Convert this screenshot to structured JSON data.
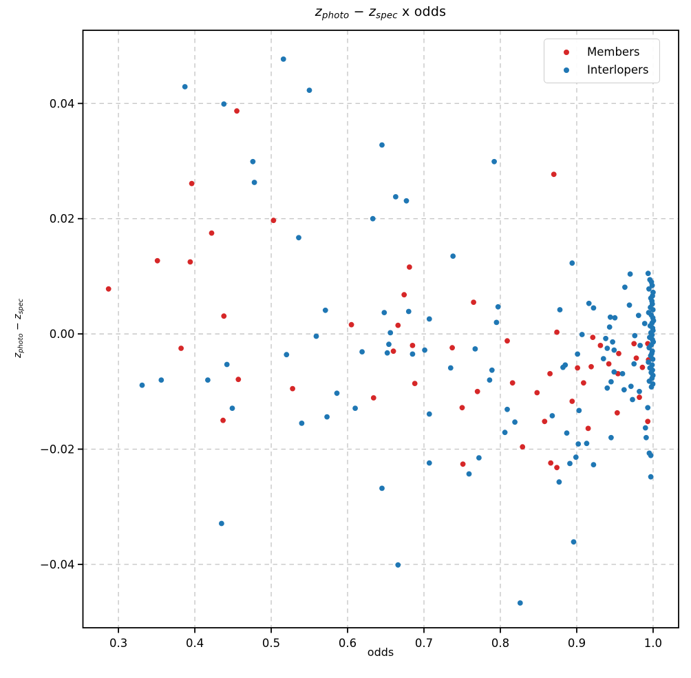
{
  "chart_data": {
    "type": "scatter",
    "title_segments": [
      {
        "k": "var",
        "t": "z"
      },
      {
        "k": "sub",
        "t": "photo"
      },
      {
        "k": "norm",
        "t": " − "
      },
      {
        "k": "var",
        "t": "z"
      },
      {
        "k": "sub",
        "t": "spec"
      },
      {
        "k": "norm",
        "t": " x odds"
      }
    ],
    "xlabel": "odds",
    "ylabel_segments": [
      {
        "k": "var",
        "t": "z"
      },
      {
        "k": "sub",
        "t": "photo"
      },
      {
        "k": "norm",
        "t": " − "
      },
      {
        "k": "var",
        "t": "z"
      },
      {
        "k": "sub",
        "t": "spec"
      }
    ],
    "xlim": [
      0.2535,
      1.0334
    ],
    "ylim": [
      -0.051,
      0.0527
    ],
    "grid": "dashed",
    "xticks": {
      "values": [
        0.3,
        0.4,
        0.5,
        0.6,
        0.7,
        0.8,
        0.9,
        1.0
      ],
      "labels": [
        "0.3",
        "0.4",
        "0.5",
        "0.6",
        "0.7",
        "0.8",
        "0.9",
        "1.0"
      ]
    },
    "yticks": {
      "values": [
        0.04,
        0.02,
        0.0,
        -0.02,
        -0.04
      ],
      "labels": [
        "0.04",
        "0.02",
        "0.00",
        "−0.02",
        "−0.04"
      ]
    },
    "legend": [
      {
        "label": "Members",
        "color": "#d62728"
      },
      {
        "label": "Interlopers",
        "color": "#1f77b4"
      }
    ],
    "series": [
      {
        "name": "Members",
        "color": "#d62728",
        "points": [
          [
            0.287,
            0.0078
          ],
          [
            0.351,
            0.0127
          ],
          [
            0.394,
            0.0125
          ],
          [
            0.422,
            0.0175
          ],
          [
            0.396,
            0.0261
          ],
          [
            0.455,
            0.0387
          ],
          [
            0.503,
            0.0197
          ],
          [
            0.438,
            0.0031
          ],
          [
            0.382,
            -0.0025
          ],
          [
            0.457,
            -0.0079
          ],
          [
            0.437,
            -0.015
          ],
          [
            0.528,
            -0.0095
          ],
          [
            0.605,
            0.0016
          ],
          [
            0.666,
            0.0015
          ],
          [
            0.674,
            0.0068
          ],
          [
            0.681,
            0.0116
          ],
          [
            0.685,
            -0.002
          ],
          [
            0.66,
            -0.003
          ],
          [
            0.688,
            -0.0086
          ],
          [
            0.634,
            -0.0111
          ],
          [
            0.765,
            0.0055
          ],
          [
            0.737,
            -0.0024
          ],
          [
            0.77,
            -0.01
          ],
          [
            0.75,
            -0.0128
          ],
          [
            0.87,
            0.0277
          ],
          [
            0.874,
            0.0003
          ],
          [
            0.809,
            -0.0012
          ],
          [
            0.921,
            -0.0006
          ],
          [
            0.931,
            -0.002
          ],
          [
            0.955,
            -0.0034
          ],
          [
            0.901,
            -0.0059
          ],
          [
            0.919,
            -0.0057
          ],
          [
            0.942,
            -0.0052
          ],
          [
            0.954,
            -0.0069
          ],
          [
            0.865,
            -0.0069
          ],
          [
            0.816,
            -0.0085
          ],
          [
            0.848,
            -0.0102
          ],
          [
            0.909,
            -0.0085
          ],
          [
            0.894,
            -0.0117
          ],
          [
            0.982,
            -0.011
          ],
          [
            0.953,
            -0.0137
          ],
          [
            0.858,
            -0.0152
          ],
          [
            0.915,
            -0.0164
          ],
          [
            0.993,
            -0.0152
          ],
          [
            0.829,
            -0.0196
          ],
          [
            0.866,
            -0.0224
          ],
          [
            0.874,
            -0.0232
          ],
          [
            0.751,
            -0.0226
          ],
          [
            0.975,
            -0.0017
          ],
          [
            0.993,
            -0.0017
          ],
          [
            0.978,
            -0.0042
          ],
          [
            0.994,
            -0.0045
          ],
          [
            0.986,
            -0.0058
          ]
        ]
      },
      {
        "name": "Interlopers",
        "color": "#1f77b4",
        "points": [
          [
            0.387,
            0.0429
          ],
          [
            0.438,
            0.0399
          ],
          [
            0.476,
            0.0299
          ],
          [
            0.478,
            0.0263
          ],
          [
            0.516,
            0.0477
          ],
          [
            0.55,
            0.0423
          ],
          [
            0.645,
            0.0328
          ],
          [
            0.663,
            0.0238
          ],
          [
            0.677,
            0.0231
          ],
          [
            0.633,
            0.02
          ],
          [
            0.792,
            0.0299
          ],
          [
            0.536,
            0.0167
          ],
          [
            0.738,
            0.0135
          ],
          [
            0.894,
            0.0123
          ],
          [
            0.571,
            0.0041
          ],
          [
            0.648,
            0.0037
          ],
          [
            0.68,
            0.0039
          ],
          [
            0.707,
            0.0026
          ],
          [
            0.656,
            0.0002
          ],
          [
            0.559,
            -0.0004
          ],
          [
            0.654,
            -0.0018
          ],
          [
            0.701,
            -0.0028
          ],
          [
            0.767,
            -0.0026
          ],
          [
            0.619,
            -0.0031
          ],
          [
            0.652,
            -0.0033
          ],
          [
            0.685,
            -0.0035
          ],
          [
            0.52,
            -0.0036
          ],
          [
            0.442,
            -0.0053
          ],
          [
            0.356,
            -0.008
          ],
          [
            0.331,
            -0.0089
          ],
          [
            0.417,
            -0.008
          ],
          [
            0.449,
            -0.0129
          ],
          [
            0.586,
            -0.0103
          ],
          [
            0.61,
            -0.0129
          ],
          [
            0.707,
            -0.0139
          ],
          [
            0.573,
            -0.0144
          ],
          [
            0.54,
            -0.0155
          ],
          [
            0.735,
            -0.0059
          ],
          [
            0.797,
            0.0047
          ],
          [
            0.795,
            0.002
          ],
          [
            0.878,
            0.0042
          ],
          [
            0.916,
            0.0053
          ],
          [
            0.922,
            0.0045
          ],
          [
            0.944,
            0.0029
          ],
          [
            0.95,
            0.0028
          ],
          [
            0.943,
            0.0012
          ],
          [
            0.907,
            -0.0001
          ],
          [
            0.938,
            -0.0008
          ],
          [
            0.947,
            -0.0014
          ],
          [
            0.94,
            -0.0025
          ],
          [
            0.949,
            -0.0028
          ],
          [
            0.901,
            -0.0035
          ],
          [
            0.935,
            -0.0043
          ],
          [
            0.885,
            -0.0054
          ],
          [
            0.882,
            -0.0058
          ],
          [
            0.789,
            -0.0063
          ],
          [
            0.786,
            -0.008
          ],
          [
            0.96,
            -0.0069
          ],
          [
            0.949,
            -0.0066
          ],
          [
            0.945,
            -0.0083
          ],
          [
            0.94,
            -0.0094
          ],
          [
            0.962,
            -0.0097
          ],
          [
            0.809,
            -0.0131
          ],
          [
            0.903,
            -0.0133
          ],
          [
            0.868,
            -0.0142
          ],
          [
            0.819,
            -0.0153
          ],
          [
            0.806,
            -0.0171
          ],
          [
            0.887,
            -0.0172
          ],
          [
            0.902,
            -0.0191
          ],
          [
            0.913,
            -0.019
          ],
          [
            0.945,
            -0.018
          ],
          [
            0.991,
            -0.018
          ],
          [
            0.772,
            -0.0215
          ],
          [
            0.899,
            -0.0214
          ],
          [
            0.891,
            -0.0225
          ],
          [
            0.922,
            -0.0227
          ],
          [
            0.877,
            -0.0257
          ],
          [
            0.896,
            -0.0361
          ],
          [
            0.826,
            -0.0467
          ],
          [
            0.435,
            -0.0329
          ],
          [
            0.645,
            -0.0268
          ],
          [
            0.666,
            -0.0401
          ],
          [
            0.707,
            -0.0224
          ],
          [
            0.759,
            -0.0243
          ],
          [
            0.97,
            0.0104
          ],
          [
            0.963,
            0.0081
          ],
          [
            0.969,
            0.005
          ],
          [
            0.981,
            0.0032
          ],
          [
            0.989,
            0.0018
          ],
          [
            0.976,
            -0.0003
          ],
          [
            0.983,
            -0.002
          ],
          [
            0.975,
            -0.0052
          ],
          [
            0.971,
            -0.0091
          ],
          [
            0.973,
            -0.0114
          ],
          [
            0.982,
            -0.01
          ],
          [
            0.993,
            -0.0128
          ],
          [
            0.99,
            -0.0163
          ],
          [
            0.995,
            -0.0207
          ],
          [
            0.997,
            -0.0211
          ],
          [
            0.997,
            -0.0248
          ],
          [
            0.9935,
            0.0105
          ],
          [
            0.9958,
            0.0094
          ],
          [
            0.9978,
            0.009
          ],
          [
            0.9988,
            0.0084
          ],
          [
            0.9946,
            0.0078
          ],
          [
            1.0,
            0.0072
          ],
          [
            0.9992,
            0.0066
          ],
          [
            0.997,
            0.0062
          ],
          [
            0.9984,
            0.0057
          ],
          [
            0.999,
            0.0052
          ],
          [
            0.9965,
            0.0046
          ],
          [
            0.9998,
            0.0042
          ],
          [
            0.9942,
            0.0037
          ],
          [
            0.9975,
            0.0033
          ],
          [
            0.9996,
            0.0028
          ],
          [
            1.0005,
            0.0023
          ],
          [
            0.9987,
            0.0019
          ],
          [
            0.9962,
            0.0014
          ],
          [
            0.9993,
            0.001
          ],
          [
            0.9999,
            0.0006
          ],
          [
            0.9972,
            0.0002
          ],
          [
            0.9986,
            -0.0002
          ],
          [
            0.9955,
            -0.0006
          ],
          [
            0.9992,
            -0.001
          ],
          [
            1.0002,
            -0.0014
          ],
          [
            0.9978,
            -0.0019
          ],
          [
            0.9948,
            -0.0024
          ],
          [
            0.999,
            -0.003
          ],
          [
            0.9983,
            -0.0034
          ],
          [
            0.9968,
            -0.0038
          ],
          [
            0.9995,
            -0.0044
          ],
          [
            0.9938,
            -0.0049
          ],
          [
            0.9987,
            -0.0054
          ],
          [
            0.9958,
            -0.0059
          ],
          [
            0.9992,
            -0.0063
          ],
          [
            0.9975,
            -0.0067
          ],
          [
            0.9998,
            -0.0072
          ],
          [
            0.9985,
            -0.0077
          ],
          [
            0.995,
            -0.0082
          ],
          [
            0.9996,
            -0.0087
          ],
          [
            0.9978,
            -0.0092
          ]
        ]
      }
    ],
    "style": {
      "grid_color": "#c7c7c7",
      "spine_color": "#000000",
      "tick_label_color": "#000000",
      "point_radius_px": 3.9
    }
  }
}
